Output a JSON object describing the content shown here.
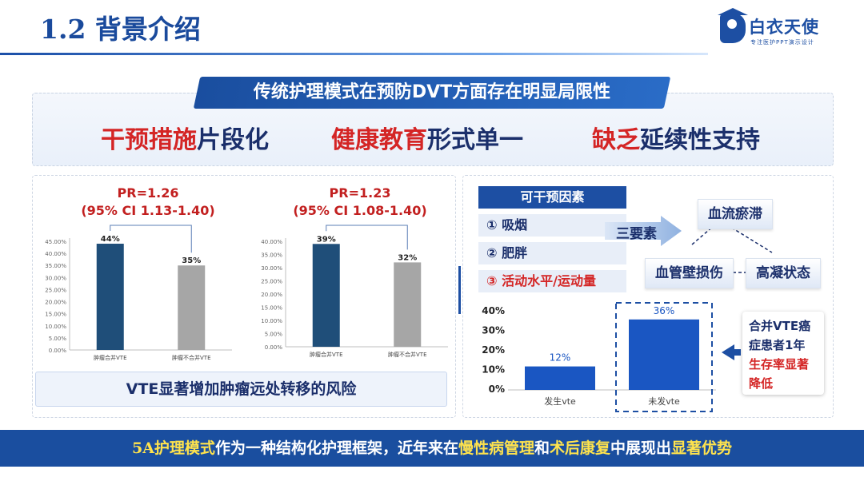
{
  "header": {
    "title": "1.2 背景介绍",
    "logo_name": "白衣天使",
    "logo_tagline": "专注医护PPT演示设计"
  },
  "banner": {
    "text": "传统护理模式在预防DVT方面存在明显局限性"
  },
  "limitations": [
    {
      "highlight": "干预措施",
      "rest": "片段化"
    },
    {
      "highlight": "健康教育",
      "rest": "形式单一"
    },
    {
      "highlight": "缺乏",
      "rest": "延续性支持"
    }
  ],
  "left_section": {
    "chart1_pr": "PR=1.26",
    "chart1_ci": "(95% CI 1.13-1.40)",
    "chart2_pr": "PR=1.23",
    "chart2_ci": "(95% CI 1.08-1.40)",
    "caption": "VTE显著增加肿瘤远处转移的风险"
  },
  "right_section": {
    "factors_title": "可干预因素",
    "factors": [
      "① 吸烟",
      "② 肥胖",
      "③ 活动水平/运动量"
    ],
    "triad_label": "三要素",
    "triad": [
      "血流瘀滞",
      "血管壁损伤",
      "高凝状态"
    ],
    "note_lines": [
      "合并VTE癌",
      "症患者1年",
      "生存率显著",
      "降低"
    ]
  },
  "footer": {
    "parts": [
      {
        "text": "5A护理模式",
        "hl": true
      },
      {
        "text": "作为一种结构化护理框架，近年来在",
        "hl": false
      },
      {
        "text": "慢性病管理",
        "hl": true
      },
      {
        "text": "和",
        "hl": false
      },
      {
        "text": "术后康复",
        "hl": true
      },
      {
        "text": "中展现出",
        "hl": false
      },
      {
        "text": "显著优势",
        "hl": true
      }
    ]
  },
  "colors": {
    "primary": "#1d4fa3",
    "dark_bar": "#1f4e79",
    "gray_bar": "#a6a6a6",
    "red": "#d42525",
    "yellow": "#ffe34d"
  },
  "chart_data": [
    {
      "type": "bar",
      "categories": [
        "肿瘤合并VTE",
        "肿瘤不合并VTE"
      ],
      "values": [
        44,
        35
      ],
      "labels": [
        "44%",
        "35%"
      ],
      "ylim": [
        0,
        45
      ],
      "yticks": [
        "0.00%",
        "5.00%",
        "10.00%",
        "15.00%",
        "20.00%",
        "25.00%",
        "30.00%",
        "35.00%",
        "40.00%",
        "45.00%"
      ],
      "title": "PR=1.26",
      "subtitle": "(95% CI 1.13-1.40)"
    },
    {
      "type": "bar",
      "categories": [
        "肿瘤合并VTE",
        "肿瘤不合并VTE"
      ],
      "values": [
        39,
        32
      ],
      "labels": [
        "39%",
        "32%"
      ],
      "ylim": [
        0,
        40
      ],
      "yticks": [
        "0.00%",
        "5.00%",
        "10.00%",
        "15.00%",
        "20.00%",
        "25.00%",
        "30.00%",
        "35.00%",
        "40.00%"
      ],
      "title": "PR=1.23",
      "subtitle": "(95% CI 1.08-1.40)"
    },
    {
      "type": "bar",
      "categories": [
        "发生vte",
        "未发vte"
      ],
      "values": [
        12,
        36
      ],
      "labels": [
        "12%",
        "36%"
      ],
      "ylim": [
        0,
        40
      ],
      "yticks": [
        "0%",
        "10%",
        "20%",
        "30%",
        "40%"
      ]
    }
  ]
}
